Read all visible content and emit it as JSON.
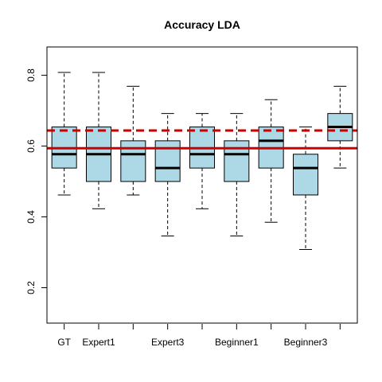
{
  "chart_data": {
    "type": "boxplot",
    "title": "Accuracy LDA",
    "xlabel": "",
    "ylabel": "",
    "categories": [
      "GT",
      "Expert1",
      "",
      "Expert3",
      "",
      "Beginner1",
      "",
      "Beginner3",
      ""
    ],
    "boxes": [
      {
        "whisker_low": 0.462,
        "q1": 0.538,
        "median": 0.577,
        "q3": 0.654,
        "whisker_high": 0.808
      },
      {
        "whisker_low": 0.423,
        "q1": 0.5,
        "median": 0.577,
        "q3": 0.654,
        "whisker_high": 0.808
      },
      {
        "whisker_low": 0.462,
        "q1": 0.5,
        "median": 0.577,
        "q3": 0.615,
        "whisker_high": 0.769
      },
      {
        "whisker_low": 0.346,
        "q1": 0.5,
        "median": 0.538,
        "q3": 0.615,
        "whisker_high": 0.692
      },
      {
        "whisker_low": 0.423,
        "q1": 0.538,
        "median": 0.577,
        "q3": 0.654,
        "whisker_high": 0.692
      },
      {
        "whisker_low": 0.346,
        "q1": 0.5,
        "median": 0.577,
        "q3": 0.615,
        "whisker_high": 0.692
      },
      {
        "whisker_low": 0.385,
        "q1": 0.538,
        "median": 0.615,
        "q3": 0.654,
        "whisker_high": 0.731
      },
      {
        "whisker_low": 0.308,
        "q1": 0.462,
        "median": 0.538,
        "q3": 0.577,
        "whisker_high": 0.654
      },
      {
        "whisker_low": 0.538,
        "q1": 0.615,
        "median": 0.654,
        "q3": 0.692,
        "whisker_high": 0.769
      }
    ],
    "reference_lines": [
      {
        "y": 0.594,
        "style": "solid",
        "color": "#cc0000"
      },
      {
        "y": 0.644,
        "style": "dashed",
        "color": "#cc0000"
      }
    ],
    "yticks": [
      0.2,
      0.4,
      0.6,
      0.8
    ],
    "ytick_labels": [
      "0.2",
      "0.4",
      "0.6",
      "0.8"
    ],
    "ylim": [
      0.1,
      0.88
    ],
    "box_fill": "#add8e6",
    "grid": false,
    "legend": "none"
  }
}
